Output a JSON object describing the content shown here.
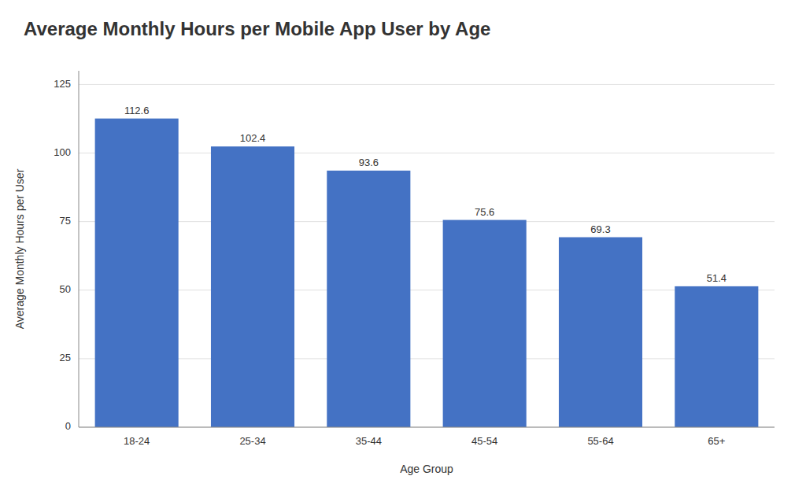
{
  "chart_data": {
    "type": "bar",
    "title": "Average Monthly Hours per Mobile App User by Age",
    "xlabel": "Age Group",
    "ylabel": "Average Monthly Hours per User",
    "categories": [
      "18-24",
      "25-34",
      "35-44",
      "45-54",
      "55-64",
      "65+"
    ],
    "values": [
      112.6,
      102.4,
      93.6,
      75.6,
      69.3,
      51.4
    ],
    "color": "#4472C4",
    "ylim": [
      0,
      130
    ],
    "yticks": [
      0,
      25,
      50,
      75,
      100,
      125
    ],
    "grid": true,
    "data_labels": true
  }
}
